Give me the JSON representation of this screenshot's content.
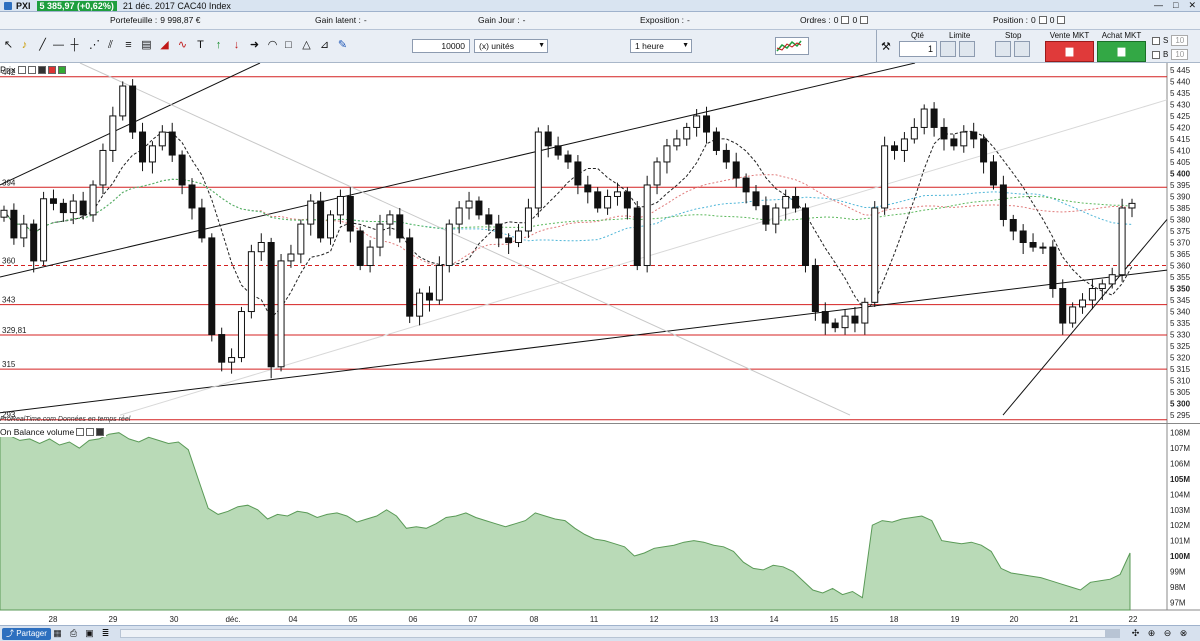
{
  "titlebar": {
    "symbol": "PXI",
    "price_badge": "5 385,97 (+0,62%)",
    "title": "21 déc. 2017 CAC40 Index",
    "controls": [
      "—",
      "□",
      "✕"
    ]
  },
  "infobar": {
    "portefeuille_label": "Portefeuille :",
    "portefeuille_value": "9 998,87 €",
    "gain_latent_label": "Gain latent :",
    "gain_latent_value": "-",
    "gain_jour_label": "Gain Jour :",
    "gain_jour_value": "-",
    "exposition_label": "Exposition :",
    "exposition_value": "-",
    "ordres_label": "Ordres :",
    "ordres_value": "0",
    "ordres_value2": "0",
    "position_label": "Position :",
    "position_value": "0",
    "position_value2": "0"
  },
  "toolbar": {
    "quantity_value": "10000",
    "unit_select": "(x) unités",
    "timeframe_select": "1 heure",
    "qte_label": "Qté",
    "qte_value": "1",
    "limite_label": "Limite",
    "stop_label": "Stop",
    "vente_label": "Vente MKT",
    "achat_label": "Achat MKT",
    "s_label": "S",
    "s_value": "10",
    "b_label": "B",
    "b_value": "10"
  },
  "chart_panel": {
    "prix_label": "Prix",
    "source_note": "ProRealTime.com  Données en temps réel",
    "obv_label": "On Balance volume",
    "level_labels": [
      "394",
      "360",
      "343",
      "329,81",
      "315",
      "293",
      "442"
    ],
    "price_axis": [
      "5 445",
      "5 440",
      "5 435",
      "5 430",
      "5 425",
      "5 420",
      "5 415",
      "5 410",
      "5 405",
      "5 400",
      "5 395",
      "5 390",
      "5 385",
      "5 380",
      "5 375",
      "5 370",
      "5 365",
      "5 360",
      "5 355",
      "5 350",
      "5 345",
      "5 340",
      "5 335",
      "5 330",
      "5 325",
      "5 320",
      "5 315",
      "5 310",
      "5 305",
      "5 300",
      "5 295"
    ],
    "volume_axis": [
      "108M",
      "107M",
      "106M",
      "105M",
      "104M",
      "103M",
      "102M",
      "101M",
      "100M",
      "99M",
      "98M",
      "97M"
    ],
    "date_axis": [
      "28",
      "29",
      "30",
      "déc.",
      "04",
      "05",
      "06",
      "07",
      "08",
      "11",
      "12",
      "13",
      "14",
      "15",
      "18",
      "19",
      "20",
      "21",
      "22"
    ]
  },
  "chart_data": {
    "type": "candlestick",
    "title": "CAC40 Index",
    "timeframe": "1 heure",
    "ylim": [
      5292,
      5448
    ],
    "candles_close": [
      5384,
      5372,
      5378,
      5362,
      5389,
      5387,
      5383,
      5388,
      5382,
      5395,
      5410,
      5425,
      5438,
      5418,
      5405,
      5412,
      5418,
      5408,
      5395,
      5385,
      5372,
      5330,
      5318,
      5320,
      5340,
      5366,
      5370,
      5316,
      5362,
      5365,
      5378,
      5388,
      5372,
      5382,
      5390,
      5375,
      5360,
      5368,
      5378,
      5382,
      5372,
      5338,
      5348,
      5345,
      5360,
      5378,
      5385,
      5388,
      5382,
      5378,
      5372,
      5370,
      5375,
      5385,
      5418,
      5412,
      5408,
      5405,
      5395,
      5392,
      5385,
      5390,
      5392,
      5385,
      5360,
      5395,
      5405,
      5412,
      5415,
      5420,
      5425,
      5418,
      5410,
      5405,
      5398,
      5392,
      5386,
      5378,
      5385,
      5390,
      5385,
      5360,
      5340,
      5335,
      5333,
      5338,
      5335,
      5344,
      5385,
      5412,
      5410,
      5415,
      5420,
      5428,
      5420,
      5415,
      5412,
      5418,
      5415,
      5405,
      5395,
      5380,
      5375,
      5370,
      5368,
      5368,
      5350,
      5335,
      5342,
      5345,
      5350,
      5352,
      5356,
      5385,
      5387
    ],
    "horizontal_levels": [
      5442,
      5394,
      5360,
      5343,
      5329.81,
      5315,
      5293
    ],
    "obv_ylim": [
      96.5,
      108.5
    ],
    "obv": [
      108.0,
      107.8,
      107.5,
      107.6,
      107.3,
      107.6,
      107.2,
      107.4,
      107.0,
      107.5,
      107.6,
      107.9,
      108.0,
      107.6,
      107.4,
      107.7,
      107.5,
      107.3,
      107.4,
      106.9,
      105.0,
      103.1,
      102.7,
      102.9,
      103.2,
      103.3,
      103.0,
      102.4,
      102.7,
      102.6,
      102.9,
      102.8,
      102.5,
      102.7,
      102.8,
      102.6,
      102.2,
      102.4,
      102.6,
      103.0,
      102.6,
      101.8,
      101.9,
      101.8,
      102.1,
      102.5,
      102.6,
      102.8,
      102.5,
      102.3,
      102.1,
      101.9,
      102.1,
      102.3,
      102.8,
      102.6,
      102.4,
      102.3,
      101.8,
      101.4,
      101.1,
      101.0,
      100.8,
      100.6,
      100.0,
      100.2,
      100.5,
      100.6,
      100.7,
      100.9,
      101.0,
      100.9,
      100.7,
      100.6,
      100.3,
      99.6,
      99.2,
      99.1,
      99.4,
      99.3,
      99.0,
      98.4,
      97.8,
      97.6,
      97.9,
      97.5,
      97.7,
      97.3,
      102.0,
      102.3,
      102.2,
      102.4,
      102.5,
      102.6,
      102.3,
      101.0,
      100.9,
      100.8,
      100.9,
      100.7,
      100.3,
      99.2,
      98.9,
      98.8,
      98.7,
      98.6,
      98.4,
      98.2,
      98.0,
      97.8,
      98.3,
      98.4,
      98.5,
      98.8,
      100.2
    ]
  }
}
